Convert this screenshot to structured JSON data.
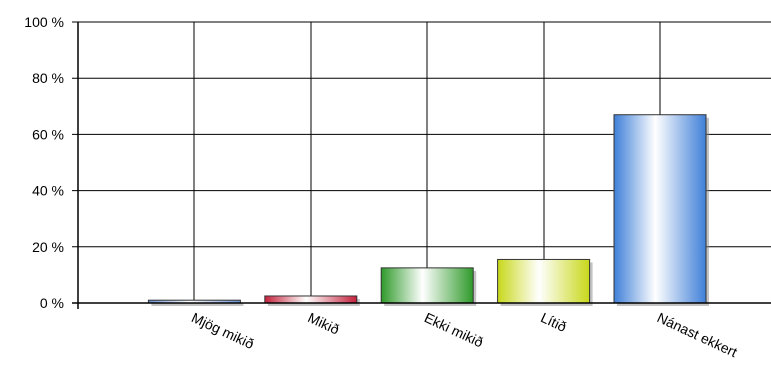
{
  "chart_data": {
    "type": "bar",
    "categories": [
      "Mjög mikið",
      "Mikið",
      "Ekki mikið",
      "Lítið",
      "Nánast ekkert"
    ],
    "values": [
      1,
      2.5,
      12.5,
      15.5,
      67
    ],
    "title": "",
    "xlabel": "",
    "ylabel": "",
    "ylim": [
      0,
      100
    ],
    "yticks": [
      "0 %",
      "20 %",
      "40 %",
      "60 %",
      "80 %",
      "100 %"
    ],
    "grid": true,
    "legend": "none",
    "colors": [
      "#6a8fcf",
      "#c4213c",
      "#2f9a2a",
      "#c8d81a",
      "#3f7fd8"
    ]
  }
}
